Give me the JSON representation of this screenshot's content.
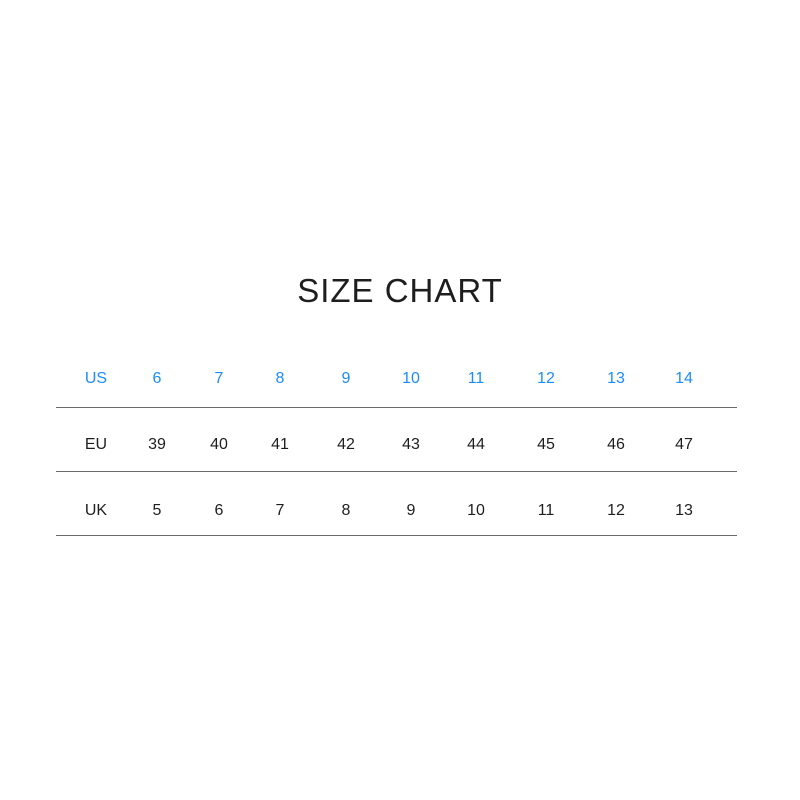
{
  "title": "SIZE CHART",
  "accent_color": "#1a8cff",
  "rows": [
    {
      "label": "US",
      "values": [
        "6",
        "7",
        "8",
        "9",
        "10",
        "11",
        "12",
        "13",
        "14"
      ]
    },
    {
      "label": "EU",
      "values": [
        "39",
        "40",
        "41",
        "42",
        "43",
        "44",
        "45",
        "46",
        "47"
      ]
    },
    {
      "label": "UK",
      "values": [
        "5",
        "6",
        "7",
        "8",
        "9",
        "10",
        "11",
        "12",
        "13"
      ]
    }
  ]
}
